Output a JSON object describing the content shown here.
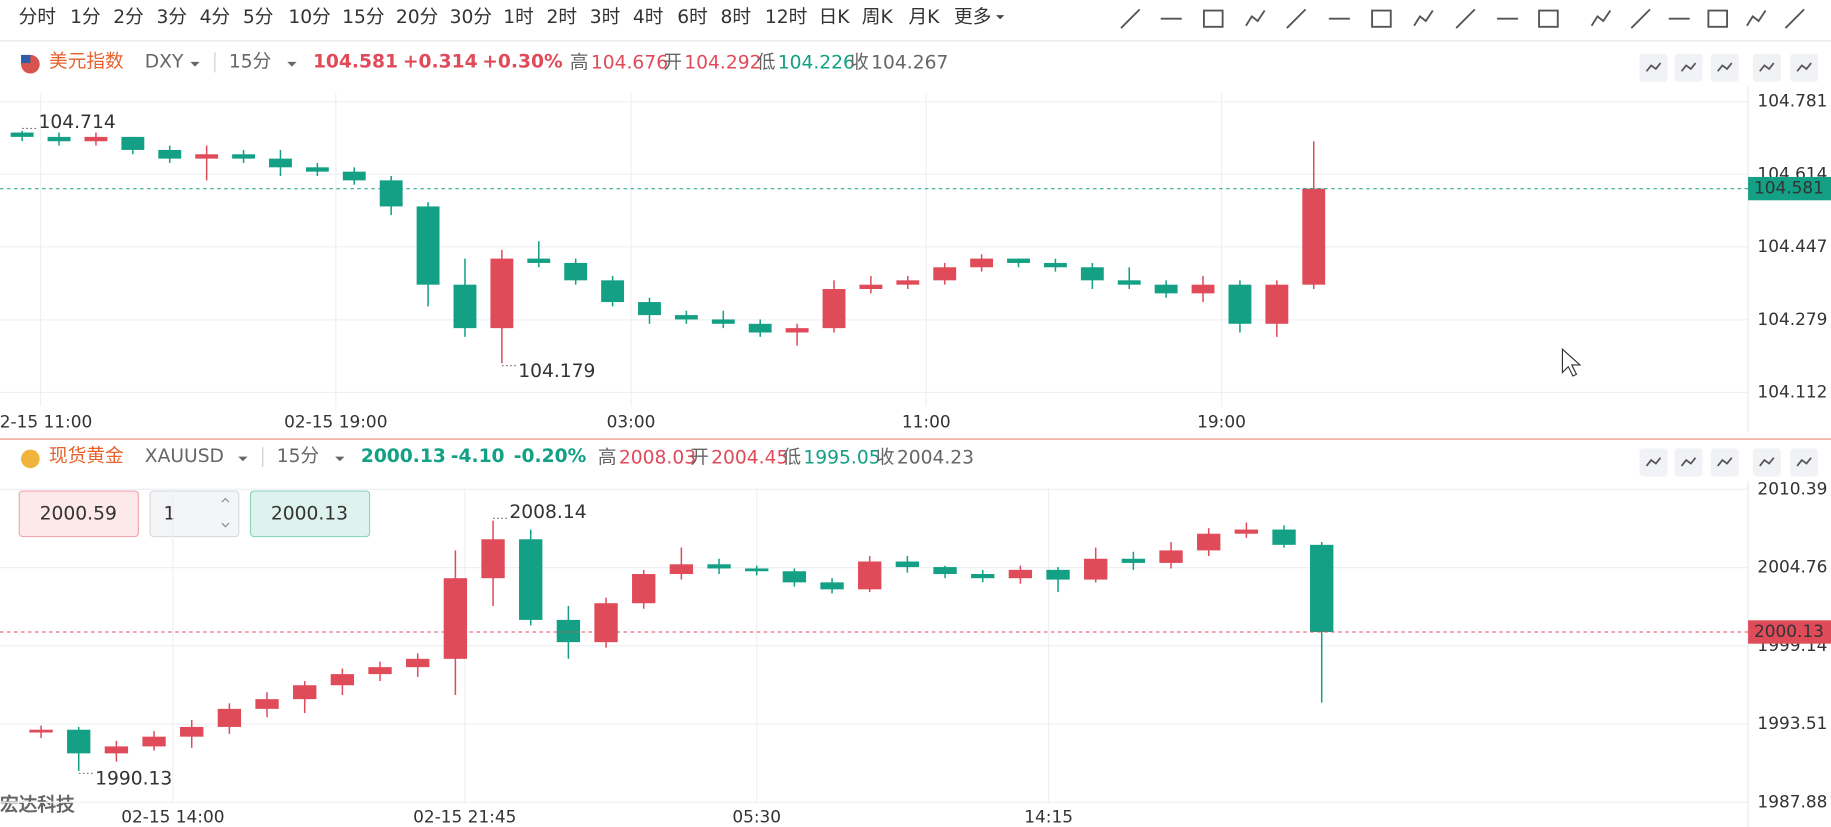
{
  "toolbar": {
    "periods": [
      "分时",
      "1分",
      "2分",
      "3分",
      "4分",
      "5分",
      "10分",
      "15分",
      "20分",
      "30分",
      "1时",
      "2时",
      "3时",
      "4时",
      "6时",
      "8时",
      "12时",
      "日K",
      "周K",
      "月K"
    ],
    "more": "更多",
    "active": 7
  },
  "panels": [
    {
      "name": "美元指数",
      "symbol": "DXY",
      "period": "15分",
      "price": 104.581,
      "change": "+0.314",
      "change_pct": "+0.30%",
      "high_label": "高",
      "high": 104.676,
      "open_label": "开",
      "open": 104.292,
      "low_label": "低",
      "low": 104.226,
      "close_label": "收",
      "close": 104.267,
      "price_color": "#e04b5a",
      "last_color": "#13a085"
    },
    {
      "name": "现货黄金",
      "symbol": "XAUUSD",
      "period": "15分",
      "price": 2000.13,
      "change": "-4.10",
      "change_pct": "-0.20%",
      "high_label": "高",
      "high": 2008.03,
      "open_label": "开",
      "open": 2004.45,
      "low_label": "低",
      "low": 1995.05,
      "close_label": "收",
      "close": 2004.23,
      "price_color": "#13a085",
      "last_color": "#e04b5a"
    }
  ],
  "order": {
    "bid": 2000.59,
    "qty": 1,
    "ask": 2000.13
  },
  "watermark": "宏达科技",
  "chart_data": [
    {
      "type": "candlestick",
      "up_color": "#e04b5a",
      "down_color": "#13a085",
      "grid": true,
      "ohlc": [
        [
          104.71,
          104.714,
          104.69,
          104.7
        ],
        [
          104.7,
          104.71,
          104.68,
          104.69
        ],
        [
          104.69,
          104.71,
          104.68,
          104.7
        ],
        [
          104.7,
          104.7,
          104.66,
          104.67
        ],
        [
          104.67,
          104.68,
          104.64,
          104.65
        ],
        [
          104.65,
          104.68,
          104.6,
          104.66
        ],
        [
          104.66,
          104.67,
          104.64,
          104.65
        ],
        [
          104.65,
          104.67,
          104.61,
          104.63
        ],
        [
          104.63,
          104.64,
          104.61,
          104.62
        ],
        [
          104.62,
          104.63,
          104.59,
          104.6
        ],
        [
          104.6,
          104.61,
          104.52,
          104.54
        ],
        [
          104.54,
          104.55,
          104.31,
          104.36
        ],
        [
          104.36,
          104.42,
          104.24,
          104.26
        ],
        [
          104.26,
          104.44,
          104.179,
          104.42
        ],
        [
          104.42,
          104.46,
          104.4,
          104.41
        ],
        [
          104.41,
          104.42,
          104.36,
          104.37
        ],
        [
          104.37,
          104.38,
          104.31,
          104.32
        ],
        [
          104.32,
          104.33,
          104.27,
          104.29
        ],
        [
          104.29,
          104.3,
          104.27,
          104.28
        ],
        [
          104.28,
          104.3,
          104.26,
          104.27
        ],
        [
          104.27,
          104.28,
          104.24,
          104.25
        ],
        [
          104.25,
          104.27,
          104.22,
          104.26
        ],
        [
          104.26,
          104.37,
          104.25,
          104.35
        ],
        [
          104.35,
          104.38,
          104.34,
          104.36
        ],
        [
          104.36,
          104.38,
          104.35,
          104.37
        ],
        [
          104.37,
          104.41,
          104.36,
          104.4
        ],
        [
          104.4,
          104.43,
          104.39,
          104.42
        ],
        [
          104.42,
          104.42,
          104.4,
          104.41
        ],
        [
          104.41,
          104.42,
          104.39,
          104.4
        ],
        [
          104.4,
          104.41,
          104.35,
          104.37
        ],
        [
          104.37,
          104.4,
          104.35,
          104.36
        ],
        [
          104.36,
          104.37,
          104.33,
          104.34
        ],
        [
          104.34,
          104.38,
          104.32,
          104.36
        ],
        [
          104.36,
          104.37,
          104.25,
          104.27
        ],
        [
          104.27,
          104.37,
          104.24,
          104.36
        ],
        [
          104.36,
          104.69,
          104.35,
          104.581
        ]
      ],
      "xlim": [
        -0.6,
        46.77
      ],
      "xticks": [
        {
          "value": 0.5,
          "label": "02-15 11:00"
        },
        {
          "value": 8.5,
          "label": "02-15 19:00"
        },
        {
          "value": 16.5,
          "label": "03:00"
        },
        {
          "value": 24.5,
          "label": "11:00"
        },
        {
          "value": 32.5,
          "label": "19:00"
        }
      ],
      "ylim": [
        104.08,
        104.8
      ],
      "yticks": [
        104.781,
        104.614,
        104.447,
        104.279,
        104.112
      ]
    },
    {
      "type": "candlestick",
      "up_color": "#e04b5a",
      "down_color": "#13a085",
      "grid": true,
      "ohlc": [
        [
          1992.9,
          1993.4,
          1992.5,
          1993.1
        ],
        [
          1993.1,
          1993.3,
          1990.13,
          1991.4
        ],
        [
          1991.4,
          1992.3,
          1990.8,
          1991.9
        ],
        [
          1991.9,
          1993.0,
          1991.6,
          1992.6
        ],
        [
          1992.6,
          1993.8,
          1991.8,
          1993.3
        ],
        [
          1993.3,
          1995.0,
          1992.8,
          1994.6
        ],
        [
          1994.6,
          1995.8,
          1994.0,
          1995.3
        ],
        [
          1995.3,
          1996.6,
          1994.3,
          1996.3
        ],
        [
          1996.3,
          1997.5,
          1995.6,
          1997.1
        ],
        [
          1997.1,
          1998.0,
          1996.6,
          1997.6
        ],
        [
          1997.6,
          1998.6,
          1996.9,
          1998.2
        ],
        [
          1998.2,
          2006.0,
          1995.6,
          2004.0
        ],
        [
          2004.0,
          2008.14,
          2002.0,
          2006.8
        ],
        [
          2006.8,
          2007.5,
          2000.6,
          2001.0
        ],
        [
          2001.0,
          2002.0,
          1998.2,
          1999.4
        ],
        [
          1999.4,
          2002.6,
          1999.0,
          2002.2
        ],
        [
          2002.2,
          2004.6,
          2001.8,
          2004.3
        ],
        [
          2004.3,
          2006.2,
          2003.9,
          2005.0
        ],
        [
          2005.0,
          2005.4,
          2004.3,
          2004.7
        ],
        [
          2004.7,
          2004.9,
          2004.2,
          2004.5
        ],
        [
          2004.5,
          2004.7,
          2003.4,
          2003.7
        ],
        [
          2003.7,
          2004.0,
          2002.9,
          2003.2
        ],
        [
          2003.2,
          2005.6,
          2003.0,
          2005.2
        ],
        [
          2005.2,
          2005.6,
          2004.4,
          2004.8
        ],
        [
          2004.8,
          2004.9,
          2004.0,
          2004.3
        ],
        [
          2004.3,
          2004.6,
          2003.7,
          2004.0
        ],
        [
          2004.0,
          2004.9,
          2003.6,
          2004.6
        ],
        [
          2004.6,
          2004.8,
          2003.0,
          2003.9
        ],
        [
          2003.9,
          2006.2,
          2003.7,
          2005.4
        ],
        [
          2005.4,
          2005.9,
          2004.6,
          2005.1
        ],
        [
          2005.1,
          2006.6,
          2004.7,
          2006.0
        ],
        [
          2006.0,
          2007.6,
          2005.6,
          2007.2
        ],
        [
          2007.2,
          2008.0,
          2006.9,
          2007.5
        ],
        [
          2007.5,
          2007.8,
          2006.2,
          2006.4
        ],
        [
          2006.4,
          2006.6,
          1995.05,
          2000.13
        ]
      ],
      "xlim": [
        -1.09,
        45.32
      ],
      "xticks": [
        {
          "value": 3.5,
          "label": "02-15 14:00"
        },
        {
          "value": 11.25,
          "label": "02-15 21:45"
        },
        {
          "value": 19.0,
          "label": "05:30"
        },
        {
          "value": 26.75,
          "label": "14:15"
        }
      ],
      "ylim": [
        1987.8,
        2010.48
      ],
      "yticks": [
        2010.39,
        2004.76,
        1999.14,
        1993.51,
        1987.88
      ]
    }
  ]
}
